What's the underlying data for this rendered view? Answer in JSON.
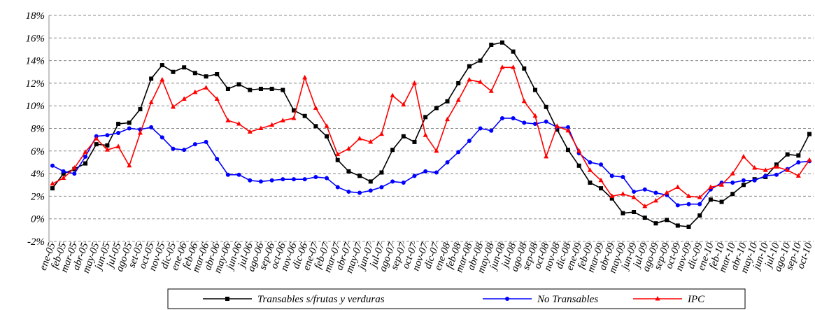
{
  "chart_data": {
    "type": "line",
    "categories": [
      "ene-05",
      "feb-05",
      "mar-05",
      "abr-05",
      "may-05",
      "jun-05",
      "jul-05",
      "ago-05",
      "set-05",
      "oct-05",
      "nov-05",
      "dic-05",
      "ene-06",
      "feb-06",
      "mar-06",
      "abr-06",
      "may-06",
      "jun-06",
      "jul-06",
      "ago-06",
      "sep-06",
      "oct-06",
      "nov-06",
      "dic-06",
      "ene-07",
      "feb-07",
      "mar-07",
      "abr-07",
      "may-07",
      "jun-07",
      "jul-07",
      "ago-07",
      "sep-07",
      "oct-07",
      "nov-07",
      "dic-07",
      "ene-08",
      "feb-08",
      "mar-08",
      "abr-08",
      "may-08",
      "jun-08",
      "jul-08",
      "ago-08",
      "sep-08",
      "oct-08",
      "nov-08",
      "dic-08",
      "ene-09",
      "feb-09",
      "mar-09",
      "abr-09",
      "may-09",
      "jun-09",
      "jul-09",
      "ago-09",
      "sep-09",
      "oct-09",
      "nov-09",
      "dic-09",
      "ene-10",
      "feb-10",
      "mar-10",
      "abr-10",
      "may-10",
      "jun-10",
      "jul-10",
      "ago-10",
      "sep-10",
      "oct-10"
    ],
    "series": [
      {
        "name": "Transables s/frutas y verduras",
        "color": "#000000",
        "marker": "square",
        "values": [
          2.7,
          4.0,
          4.4,
          4.9,
          6.6,
          6.5,
          8.4,
          8.5,
          9.7,
          12.4,
          13.6,
          13.0,
          13.4,
          12.9,
          12.6,
          12.8,
          11.5,
          11.9,
          11.4,
          11.5,
          11.5,
          11.4,
          9.6,
          9.1,
          8.2,
          7.3,
          5.2,
          4.2,
          3.8,
          3.3,
          4.1,
          6.1,
          7.3,
          6.8,
          9.0,
          9.8,
          10.4,
          12.0,
          13.5,
          14.0,
          15.4,
          15.6,
          14.8,
          13.3,
          11.4,
          9.9,
          7.9,
          6.1,
          4.7,
          3.2,
          2.7,
          1.8,
          0.5,
          0.6,
          0.1,
          -0.4,
          -0.1,
          -0.6,
          -0.7,
          0.3,
          1.7,
          1.5,
          2.2,
          3.0,
          3.5,
          3.7,
          4.8,
          5.7,
          5.6,
          7.5
        ]
      },
      {
        "name": "No Transables",
        "color": "#0000ff",
        "marker": "circle",
        "values": [
          4.7,
          4.2,
          4.0,
          5.5,
          7.3,
          7.4,
          7.6,
          8.0,
          7.9,
          8.1,
          7.2,
          6.2,
          6.1,
          6.6,
          6.8,
          5.3,
          3.9,
          3.9,
          3.4,
          3.3,
          3.4,
          3.5,
          3.5,
          3.5,
          3.7,
          3.6,
          2.8,
          2.4,
          2.3,
          2.5,
          2.8,
          3.3,
          3.2,
          3.8,
          4.2,
          4.1,
          5.0,
          5.9,
          6.9,
          8.0,
          7.8,
          8.9,
          8.9,
          8.5,
          8.4,
          8.6,
          8.1,
          8.1,
          5.8,
          5.0,
          4.8,
          3.8,
          3.7,
          2.4,
          2.6,
          2.3,
          2.1,
          1.2,
          1.3,
          1.3,
          2.6,
          3.2,
          3.2,
          3.4,
          3.4,
          3.8,
          3.9,
          4.4,
          5.0,
          5.1
        ]
      },
      {
        "name": "IPC",
        "color": "#ff0000",
        "marker": "triangle",
        "values": [
          3.1,
          3.6,
          4.5,
          5.9,
          7.1,
          6.1,
          6.4,
          4.7,
          7.6,
          10.3,
          12.3,
          9.9,
          10.6,
          11.2,
          11.6,
          10.6,
          8.7,
          8.4,
          7.7,
          8.0,
          8.3,
          8.7,
          8.9,
          12.5,
          9.8,
          8.2,
          5.7,
          6.2,
          7.1,
          6.8,
          7.5,
          10.9,
          10.1,
          12.0,
          7.4,
          6.0,
          8.8,
          10.5,
          12.3,
          12.1,
          11.3,
          13.4,
          13.4,
          10.4,
          9.1,
          5.5,
          8.2,
          7.8,
          6.0,
          4.3,
          3.4,
          2.0,
          2.2,
          1.9,
          1.1,
          1.6,
          2.3,
          2.8,
          2.0,
          1.9,
          2.8,
          3.0,
          4.0,
          5.5,
          4.5,
          4.3,
          4.6,
          4.3,
          3.8,
          5.2
        ]
      }
    ],
    "ylim": [
      -2,
      18
    ],
    "yticks": [
      {
        "value": -2,
        "label": "-2%"
      },
      {
        "value": 0,
        "label": "0%"
      },
      {
        "value": 2,
        "label": "2%"
      },
      {
        "value": 4,
        "label": "4%"
      },
      {
        "value": 6,
        "label": "6%"
      },
      {
        "value": 8,
        "label": "8%"
      },
      {
        "value": 10,
        "label": "10%"
      },
      {
        "value": 12,
        "label": "12%"
      },
      {
        "value": 14,
        "label": "14%"
      },
      {
        "value": 16,
        "label": "16%"
      },
      {
        "value": 18,
        "label": "18%"
      }
    ],
    "grid": true,
    "legend": "bottom"
  }
}
